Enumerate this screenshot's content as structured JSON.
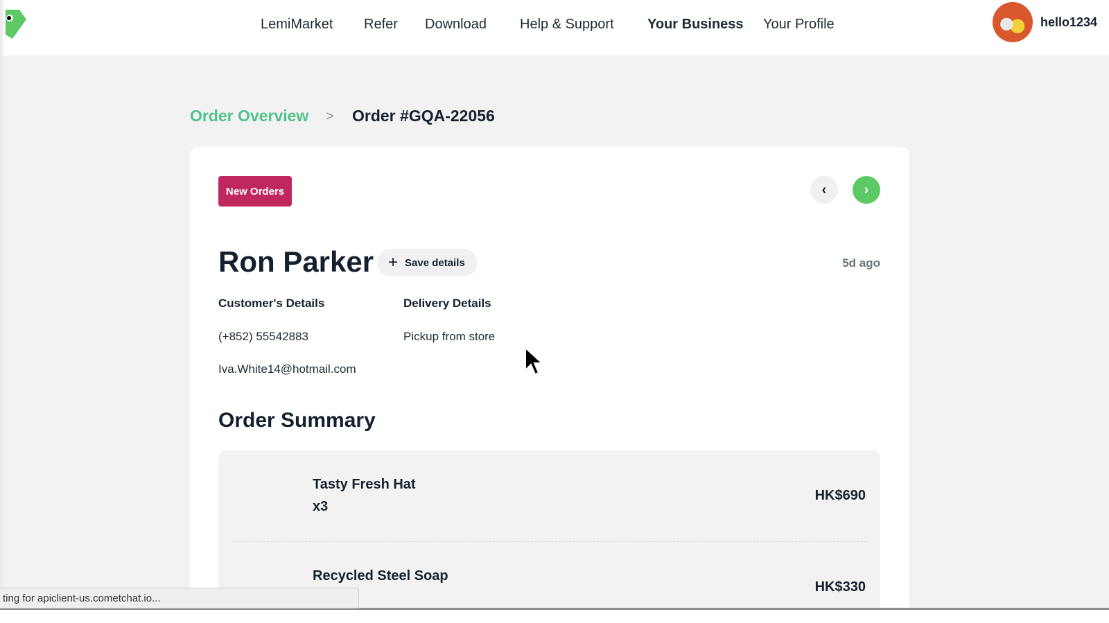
{
  "header": {
    "nav": [
      {
        "label": "LemiMarket",
        "active": false
      },
      {
        "label": "Refer",
        "active": false
      },
      {
        "label": "Download",
        "active": false
      },
      {
        "label": "Help & Support",
        "active": false
      },
      {
        "label": "Your Business",
        "active": true
      },
      {
        "label": "Your Profile",
        "active": false
      }
    ],
    "username": "hello1234",
    "brand_color": "#5cc964"
  },
  "breadcrumb": {
    "parent": "Order Overview",
    "separator": ">",
    "current": "Order #GQA-22056"
  },
  "order": {
    "status_badge": "New Orders",
    "status_color": "#c0275f",
    "prev_icon": "chevron-left-icon",
    "next_icon": "chevron-right-icon",
    "customer_name": "Ron Parker",
    "save_details_label": "Save details",
    "time_ago": "5d ago",
    "customer_details_label": "Customer's Details",
    "phone": "(+852) 55542883",
    "email": "Iva.White14@hotmail.com",
    "delivery_details_label": "Delivery Details",
    "delivery_method": "Pickup from store",
    "summary_title": "Order Summary",
    "items": [
      {
        "name": "Tasty Fresh Hat",
        "qty": "x3",
        "price": "HK$690"
      },
      {
        "name": "Recycled Steel Soap",
        "price": "HK$330"
      }
    ]
  },
  "browser_status": "ting for apiclient-us.cometchat.io..."
}
